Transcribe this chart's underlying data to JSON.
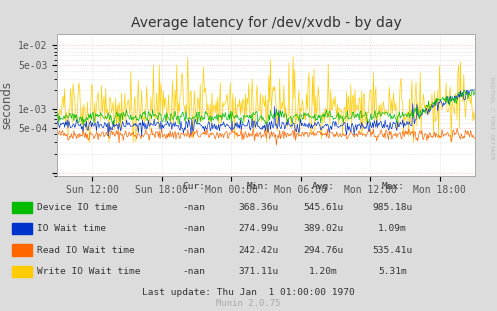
{
  "title": "Average latency for /dev/xvdb - by day",
  "ylabel": "seconds",
  "background_color": "#dcdcdc",
  "plot_bg_color": "#ffffff",
  "grid_minor_color": "#cccccc",
  "grid_major_horiz_color": "#ffaaaa",
  "grid_vert_color": "#cccccc",
  "border_color": "#aaaaaa",
  "title_color": "#333333",
  "ylabel_color": "#555555",
  "watermark": "RRDTOOL / TOBI OETIKER",
  "munin_text": "Munin 2.0.75",
  "x_tick_labels": [
    "Sun 12:00",
    "Sun 18:00",
    "Mon 00:00",
    "Mon 06:00",
    "Mon 12:00",
    "Mon 18:00"
  ],
  "ytick_vals": [
    0.0001,
    0.0005,
    0.001,
    0.005,
    0.01
  ],
  "ytick_labels": [
    "",
    "5e-04",
    "1e-03",
    "5e-03",
    "1e-02"
  ],
  "ylim_min": 9e-05,
  "ylim_max": 0.015,
  "series_colors": [
    "#00bb00",
    "#0033cc",
    "#ff6600",
    "#ffcc00"
  ],
  "series_names": [
    "Device IO time",
    "IO Wait time",
    "Read IO Wait time",
    "Write IO Wait time"
  ],
  "legend_cur": [
    "-nan",
    "-nan",
    "-nan",
    "-nan"
  ],
  "legend_min": [
    "368.36u",
    "274.99u",
    "242.42u",
    "371.11u"
  ],
  "legend_avg": [
    "545.61u",
    "389.02u",
    "294.76u",
    "1.20m"
  ],
  "legend_max": [
    "985.18u",
    "1.09m",
    "535.41u",
    "5.31m"
  ],
  "last_update": "Last update: Thu Jan  1 01:00:00 1970",
  "n_points": 500,
  "noise_seed": 42
}
